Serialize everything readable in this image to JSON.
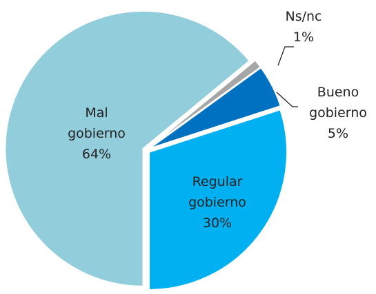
{
  "chart_data": {
    "type": "pie",
    "categories": [
      "Ns/nc",
      "Bueno gobierno",
      "Regular gobierno",
      "Mal gobierno"
    ],
    "values": [
      1,
      5,
      30,
      64
    ],
    "value_labels": [
      "1%",
      "5%",
      "30%",
      "64%"
    ],
    "colors": [
      "#a6a6a6",
      "#0070c0",
      "#00b0f0",
      "#92cddc"
    ]
  }
}
